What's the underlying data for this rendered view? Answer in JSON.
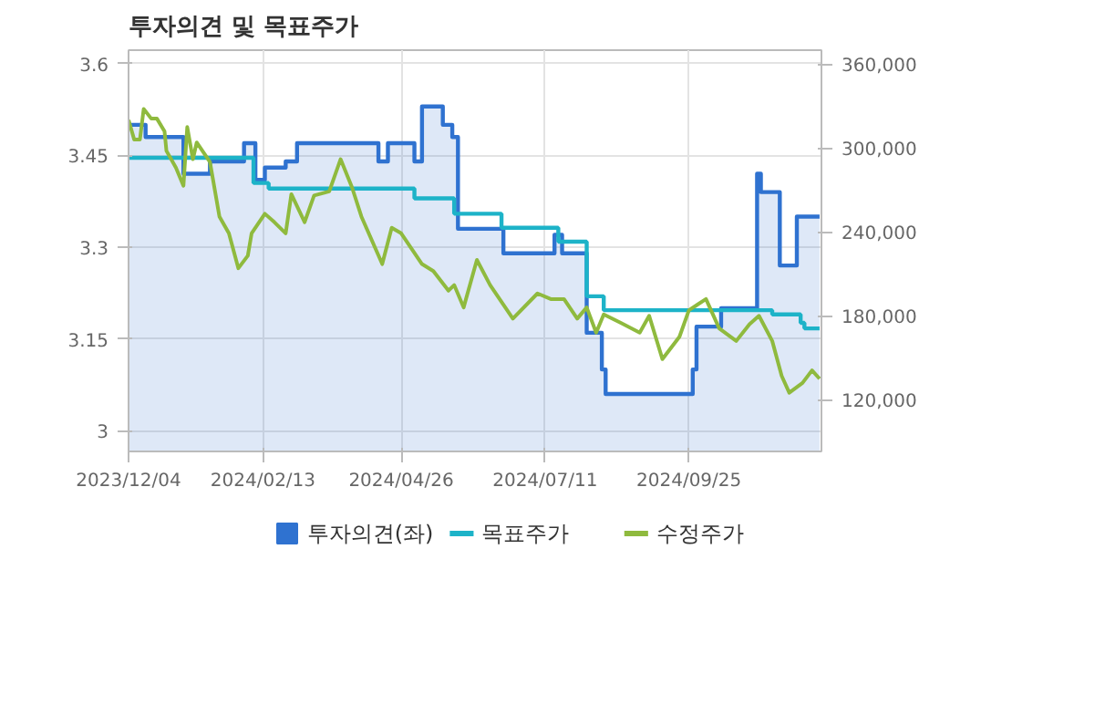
{
  "chart_data": {
    "type": "step",
    "title": "투자의견 및 목표주가",
    "xlim": [
      "2023-12-04",
      "2024-12-04"
    ],
    "xticks": [
      {
        "value": "2023-12-04",
        "label": "2023/12/04"
      },
      {
        "value": "2024-02-13",
        "label": "2024/02/13"
      },
      {
        "value": "2024-04-26",
        "label": "2024/04/26"
      },
      {
        "value": "2024-07-11",
        "label": "2024/07/11"
      },
      {
        "value": "2024-09-25",
        "label": "2024/09/25"
      }
    ],
    "ylim": [
      2.966,
      3.622
    ],
    "yticks": [
      3,
      3.15,
      3.3,
      3.45,
      3.6
    ],
    "y2lim": [
      83000,
      370000
    ],
    "y2ticks": [
      {
        "value": 120000,
        "label": "120,000"
      },
      {
        "value": 180000,
        "label": "180,000"
      },
      {
        "value": 240000,
        "label": "240,000"
      },
      {
        "value": 300000,
        "label": "300,000"
      },
      {
        "value": 360000,
        "label": "360,000"
      }
    ],
    "grid": true,
    "legend": "bottom",
    "series": [
      {
        "name": "투자의견(좌)",
        "type": "area",
        "color": "#2f72d0",
        "x": [
          "2023-12-04",
          "2023-12-13",
          "2023-12-13",
          "2024-01-02",
          "2024-01-02",
          "2024-01-16",
          "2024-01-16",
          "2024-02-03",
          "2024-02-03",
          "2024-02-09",
          "2024-02-09",
          "2024-02-14",
          "2024-02-14",
          "2024-02-25",
          "2024-02-25",
          "2024-03-02",
          "2024-03-02",
          "2024-04-14",
          "2024-04-14",
          "2024-04-19",
          "2024-04-19",
          "2024-05-03",
          "2024-05-03",
          "2024-05-07",
          "2024-05-07",
          "2024-05-18",
          "2024-05-18",
          "2024-05-23",
          "2024-05-23",
          "2024-05-26",
          "2024-05-26",
          "2024-06-19",
          "2024-06-19",
          "2024-07-16",
          "2024-07-16",
          "2024-07-20",
          "2024-07-20",
          "2024-08-02",
          "2024-08-02",
          "2024-08-10",
          "2024-08-10",
          "2024-08-12",
          "2024-08-12",
          "2024-09-27",
          "2024-09-27",
          "2024-09-29",
          "2024-09-29",
          "2024-10-12",
          "2024-10-12",
          "2024-10-31",
          "2024-10-31",
          "2024-11-02",
          "2024-11-02",
          "2024-11-12",
          "2024-11-12",
          "2024-11-21",
          "2024-11-21",
          "2024-12-03"
        ],
        "values": [
          3.5,
          3.5,
          3.48,
          3.48,
          3.42,
          3.42,
          3.44,
          3.44,
          3.47,
          3.47,
          3.41,
          3.41,
          3.43,
          3.43,
          3.44,
          3.44,
          3.47,
          3.47,
          3.44,
          3.44,
          3.47,
          3.47,
          3.44,
          3.44,
          3.53,
          3.53,
          3.5,
          3.5,
          3.48,
          3.48,
          3.33,
          3.33,
          3.29,
          3.29,
          3.32,
          3.32,
          3.29,
          3.29,
          3.16,
          3.16,
          3.1,
          3.1,
          3.06,
          3.06,
          3.1,
          3.1,
          3.17,
          3.17,
          3.2,
          3.2,
          3.42,
          3.42,
          3.39,
          3.39,
          3.27,
          3.27,
          3.35,
          3.35
        ]
      },
      {
        "name": "목표주가",
        "axis": "y2",
        "color": "#1db3c8",
        "x": [
          "2023-12-04",
          "2024-02-08",
          "2024-02-16",
          "2024-05-03",
          "2024-05-24",
          "2024-06-18",
          "2024-07-18",
          "2024-08-02",
          "2024-08-11",
          "2024-10-31",
          "2024-11-08",
          "2024-11-23",
          "2024-11-25",
          "2024-12-03"
        ],
        "values": [
          293000,
          275000,
          271000,
          264000,
          253000,
          243000,
          233000,
          194000,
          184000,
          184000,
          181000,
          175000,
          171000,
          171000
        ]
      },
      {
        "name": "수정주가",
        "type": "line",
        "axis": "y2",
        "color": "#8fba3e",
        "x": [
          "2023-12-04",
          "2023-12-07",
          "2023-12-10",
          "2023-12-12",
          "2023-12-16",
          "2023-12-19",
          "2023-12-23",
          "2023-12-24",
          "2023-12-29",
          "2024-01-02",
          "2024-01-04",
          "2024-01-07",
          "2024-01-09",
          "2024-01-16",
          "2024-01-21",
          "2024-01-26",
          "2024-01-31",
          "2024-02-05",
          "2024-02-07",
          "2024-02-14",
          "2024-02-19",
          "2024-02-25",
          "2024-02-28",
          "2024-03-06",
          "2024-03-11",
          "2024-03-19",
          "2024-03-25",
          "2024-03-31",
          "2024-04-05",
          "2024-04-16",
          "2024-04-21",
          "2024-04-26",
          "2024-05-07",
          "2024-05-13",
          "2024-05-21",
          "2024-05-24",
          "2024-05-29",
          "2024-06-05",
          "2024-06-12",
          "2024-06-24",
          "2024-07-07",
          "2024-07-14",
          "2024-07-21",
          "2024-07-28",
          "2024-08-02",
          "2024-08-07",
          "2024-08-11",
          "2024-08-20",
          "2024-08-30",
          "2024-09-04",
          "2024-09-11",
          "2024-09-20",
          "2024-09-25",
          "2024-10-04",
          "2024-10-11",
          "2024-10-20",
          "2024-10-27",
          "2024-11-01",
          "2024-11-08",
          "2024-11-13",
          "2024-11-17",
          "2024-11-24",
          "2024-11-29",
          "2024-12-03"
        ],
        "values": [
          320000,
          306000,
          306000,
          328000,
          321000,
          321000,
          312000,
          298000,
          286000,
          273000,
          315000,
          292000,
          304000,
          290000,
          251000,
          239000,
          214000,
          223000,
          239000,
          253000,
          247000,
          239000,
          267000,
          247000,
          266000,
          269000,
          292000,
          272000,
          251000,
          217000,
          243000,
          239000,
          217000,
          212000,
          198000,
          202000,
          186000,
          220000,
          202000,
          178000,
          196000,
          192000,
          192000,
          178000,
          186000,
          168000,
          181000,
          175000,
          168000,
          180000,
          149000,
          165000,
          184000,
          192000,
          171000,
          162000,
          174000,
          180000,
          162000,
          137000,
          125000,
          132000,
          141000,
          135000
        ]
      }
    ]
  }
}
